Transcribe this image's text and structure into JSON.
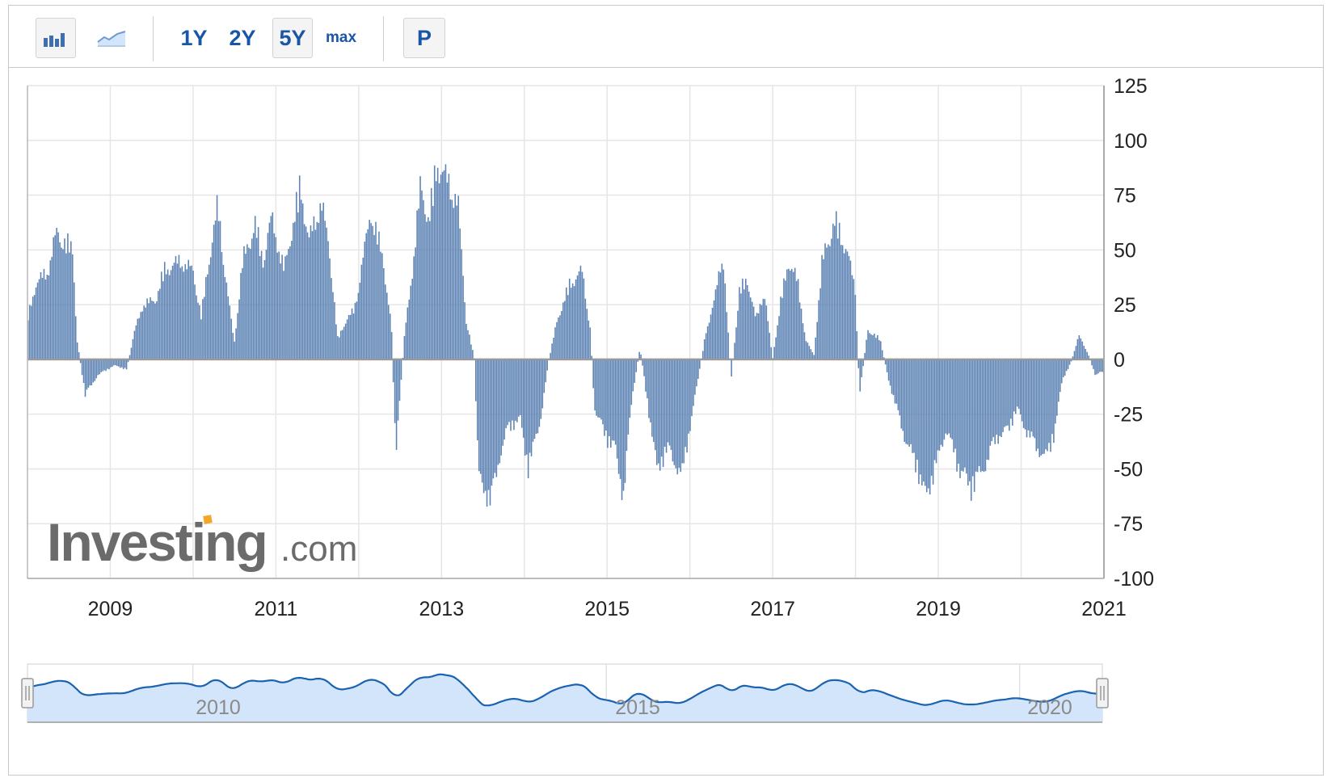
{
  "toolbar": {
    "bar_icon": "bar-chart-icon",
    "line_icon": "area-chart-icon",
    "ranges": [
      "1Y",
      "2Y",
      "5Y",
      "max"
    ],
    "selected_range": "5Y",
    "p_label": "P"
  },
  "watermark": "Investing.com",
  "colors": {
    "bar": "#5b82b3",
    "bar_edge": "#4a72a6",
    "zero_line": "#999999",
    "grid": "#e6e6e6",
    "navigator_fill": "#d3e5fa",
    "navigator_line": "#1a63b0",
    "text": "#222222"
  },
  "chart_data": {
    "type": "bar",
    "x_ticks": [
      "2009",
      "2011",
      "2013",
      "2015",
      "2017",
      "2019",
      "2021"
    ],
    "y_ticks": [
      125,
      100,
      75,
      50,
      25,
      0,
      -25,
      -50,
      -75,
      -100
    ],
    "ylim": [
      -100,
      125
    ],
    "xlim": [
      2008.0,
      2021.0
    ],
    "grid": true,
    "anchors": [
      [
        2008.0,
        20
      ],
      [
        2008.1,
        38
      ],
      [
        2008.25,
        45
      ],
      [
        2008.35,
        64
      ],
      [
        2008.55,
        55
      ],
      [
        2008.6,
        10
      ],
      [
        2008.7,
        -18
      ],
      [
        2008.85,
        -8
      ],
      [
        2009.05,
        -3
      ],
      [
        2009.2,
        -5
      ],
      [
        2009.3,
        15
      ],
      [
        2009.4,
        28
      ],
      [
        2009.55,
        30
      ],
      [
        2009.65,
        45
      ],
      [
        2009.85,
        50
      ],
      [
        2010.0,
        45
      ],
      [
        2010.1,
        22
      ],
      [
        2010.2,
        52
      ],
      [
        2010.3,
        78
      ],
      [
        2010.4,
        40
      ],
      [
        2010.5,
        8
      ],
      [
        2010.6,
        50
      ],
      [
        2010.75,
        68
      ],
      [
        2010.85,
        50
      ],
      [
        2010.95,
        72
      ],
      [
        2011.1,
        45
      ],
      [
        2011.3,
        88
      ],
      [
        2011.4,
        60
      ],
      [
        2011.55,
        80
      ],
      [
        2011.65,
        55
      ],
      [
        2011.75,
        10
      ],
      [
        2011.85,
        20
      ],
      [
        2011.95,
        25
      ],
      [
        2012.05,
        50
      ],
      [
        2012.15,
        75
      ],
      [
        2012.3,
        50
      ],
      [
        2012.4,
        15
      ],
      [
        2012.45,
        -50
      ],
      [
        2012.55,
        10
      ],
      [
        2012.65,
        45
      ],
      [
        2012.75,
        88
      ],
      [
        2012.85,
        70
      ],
      [
        2012.95,
        100
      ],
      [
        2013.1,
        88
      ],
      [
        2013.2,
        80
      ],
      [
        2013.3,
        20
      ],
      [
        2013.4,
        0
      ],
      [
        2013.45,
        -60
      ],
      [
        2013.6,
        -72
      ],
      [
        2013.7,
        -50
      ],
      [
        2013.8,
        -35
      ],
      [
        2013.95,
        -30
      ],
      [
        2014.05,
        -55
      ],
      [
        2014.2,
        -30
      ],
      [
        2014.3,
        0
      ],
      [
        2014.4,
        20
      ],
      [
        2014.55,
        38
      ],
      [
        2014.7,
        45
      ],
      [
        2014.8,
        15
      ],
      [
        2014.85,
        -25
      ],
      [
        2015.0,
        -40
      ],
      [
        2015.1,
        -45
      ],
      [
        2015.2,
        -70
      ],
      [
        2015.3,
        -20
      ],
      [
        2015.4,
        6
      ],
      [
        2015.5,
        -25
      ],
      [
        2015.6,
        -55
      ],
      [
        2015.75,
        -45
      ],
      [
        2015.9,
        -60
      ],
      [
        2016.0,
        -35
      ],
      [
        2016.1,
        -10
      ],
      [
        2016.2,
        15
      ],
      [
        2016.3,
        30
      ],
      [
        2016.4,
        55
      ],
      [
        2016.5,
        -10
      ],
      [
        2016.6,
        35
      ],
      [
        2016.7,
        40
      ],
      [
        2016.8,
        20
      ],
      [
        2016.9,
        35
      ],
      [
        2017.0,
        0
      ],
      [
        2017.1,
        30
      ],
      [
        2017.2,
        50
      ],
      [
        2017.3,
        40
      ],
      [
        2017.4,
        10
      ],
      [
        2017.5,
        2
      ],
      [
        2017.6,
        50
      ],
      [
        2017.75,
        70
      ],
      [
        2017.9,
        55
      ],
      [
        2018.0,
        35
      ],
      [
        2018.05,
        -18
      ],
      [
        2018.15,
        15
      ],
      [
        2018.3,
        10
      ],
      [
        2018.4,
        -10
      ],
      [
        2018.5,
        -25
      ],
      [
        2018.6,
        -40
      ],
      [
        2018.75,
        -55
      ],
      [
        2018.85,
        -70
      ],
      [
        2019.0,
        -50
      ],
      [
        2019.1,
        -35
      ],
      [
        2019.25,
        -55
      ],
      [
        2019.4,
        -65
      ],
      [
        2019.55,
        -55
      ],
      [
        2019.7,
        -40
      ],
      [
        2019.85,
        -35
      ],
      [
        2019.95,
        -25
      ],
      [
        2020.05,
        -35
      ],
      [
        2020.2,
        -45
      ],
      [
        2020.3,
        -50
      ],
      [
        2020.4,
        -38
      ],
      [
        2020.5,
        -10
      ],
      [
        2020.6,
        -2
      ],
      [
        2020.7,
        12
      ],
      [
        2020.8,
        4
      ],
      [
        2020.9,
        -8
      ],
      [
        2021.0,
        -6
      ]
    ],
    "navigator": {
      "x_labels": [
        "2010",
        "2015",
        "2020"
      ]
    }
  }
}
